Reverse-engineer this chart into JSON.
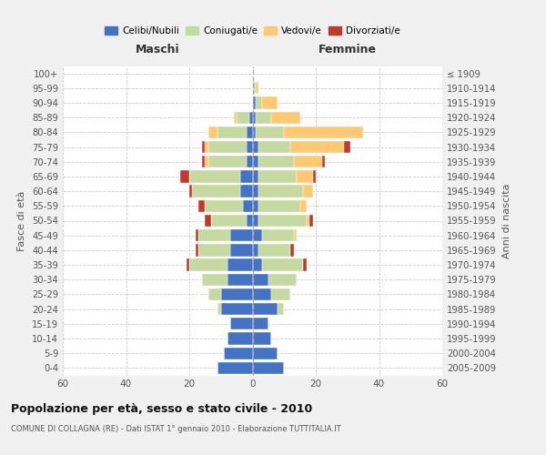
{
  "age_groups": [
    "0-4",
    "5-9",
    "10-14",
    "15-19",
    "20-24",
    "25-29",
    "30-34",
    "35-39",
    "40-44",
    "45-49",
    "50-54",
    "55-59",
    "60-64",
    "65-69",
    "70-74",
    "75-79",
    "80-84",
    "85-89",
    "90-94",
    "95-99",
    "100+"
  ],
  "birth_years": [
    "2005-2009",
    "2000-2004",
    "1995-1999",
    "1990-1994",
    "1985-1989",
    "1980-1984",
    "1975-1979",
    "1970-1974",
    "1965-1969",
    "1960-1964",
    "1955-1959",
    "1950-1954",
    "1945-1949",
    "1940-1944",
    "1935-1939",
    "1930-1934",
    "1925-1929",
    "1920-1924",
    "1915-1919",
    "1910-1914",
    "≤ 1909"
  ],
  "maschi": {
    "celibi": [
      11,
      9,
      8,
      7,
      10,
      10,
      8,
      8,
      7,
      7,
      2,
      3,
      4,
      4,
      2,
      2,
      2,
      1,
      0,
      0,
      0
    ],
    "coniugati": [
      0,
      0,
      0,
      0,
      1,
      4,
      8,
      12,
      10,
      10,
      11,
      12,
      15,
      16,
      12,
      12,
      9,
      4,
      0,
      0,
      0
    ],
    "vedovi": [
      0,
      0,
      0,
      0,
      0,
      0,
      0,
      0,
      0,
      0,
      0,
      0,
      0,
      0,
      1,
      1,
      3,
      1,
      0,
      0,
      0
    ],
    "divorziati": [
      0,
      0,
      0,
      0,
      0,
      0,
      0,
      1,
      1,
      1,
      2,
      2,
      1,
      3,
      1,
      1,
      0,
      0,
      0,
      0,
      0
    ]
  },
  "femmine": {
    "nubili": [
      10,
      8,
      6,
      5,
      8,
      6,
      5,
      3,
      2,
      3,
      2,
      2,
      2,
      2,
      2,
      2,
      1,
      1,
      1,
      0,
      0
    ],
    "coniugate": [
      0,
      0,
      0,
      0,
      2,
      6,
      9,
      13,
      10,
      10,
      15,
      13,
      14,
      12,
      11,
      10,
      9,
      5,
      2,
      1,
      0
    ],
    "vedove": [
      0,
      0,
      0,
      0,
      0,
      0,
      0,
      0,
      0,
      1,
      1,
      2,
      3,
      5,
      9,
      17,
      25,
      9,
      5,
      1,
      0
    ],
    "divorziate": [
      0,
      0,
      0,
      0,
      0,
      0,
      0,
      1,
      1,
      0,
      1,
      0,
      0,
      1,
      1,
      2,
      0,
      0,
      0,
      0,
      0
    ]
  },
  "colors": {
    "celibi": "#4472C4",
    "coniugati": "#c5d9a0",
    "vedovi": "#ffc972",
    "divorziati": "#c0392b"
  },
  "xlim": 60,
  "title": "Popolazione per età, sesso e stato civile - 2010",
  "subtitle": "COMUNE DI COLLAGNA (RE) - Dati ISTAT 1° gennaio 2010 - Elaborazione TUTTITALIA.IT",
  "ylabel_left": "Fasce di età",
  "ylabel_right": "Anni di nascita",
  "xlabel_left": "Maschi",
  "xlabel_right": "Femmine",
  "bg_color": "#f0f0f0",
  "plot_bg_color": "#ffffff"
}
